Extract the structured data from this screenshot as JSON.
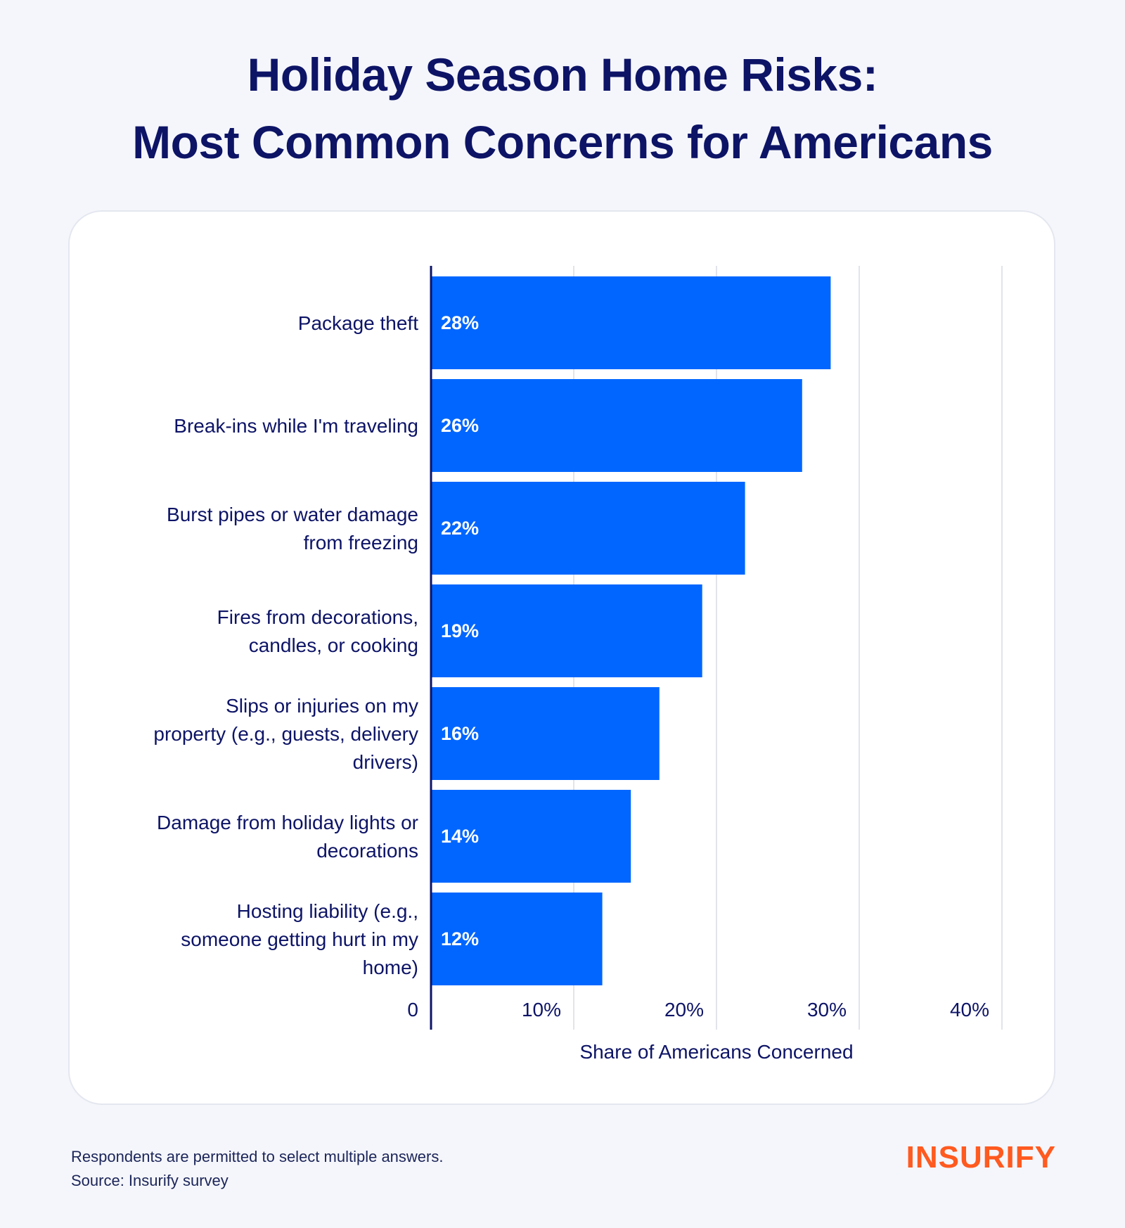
{
  "title": {
    "line1": "Holiday Season Home Risks:",
    "line2": "Most Common Concerns for Americans"
  },
  "chart_data": {
    "type": "bar",
    "orientation": "horizontal",
    "categories": [
      [
        "Package theft"
      ],
      [
        "Break-ins while I'm traveling"
      ],
      [
        "Burst pipes or water damage",
        "from freezing"
      ],
      [
        "Fires from decorations,",
        "candles, or cooking"
      ],
      [
        "Slips or injuries on my",
        "property (e.g., guests, delivery",
        "drivers)"
      ],
      [
        "Damage from holiday lights or",
        "decorations"
      ],
      [
        "Hosting liability (e.g.,",
        "someone getting hurt in my",
        "home)"
      ]
    ],
    "values": [
      28,
      26,
      22,
      19,
      16,
      14,
      12
    ],
    "data_labels": [
      "28%",
      "26%",
      "22%",
      "19%",
      "16%",
      "14%",
      "12%"
    ],
    "xlabel": "Share of Americans Concerned",
    "xlim": [
      0,
      40
    ],
    "ticks": [
      0,
      10,
      20,
      30,
      40
    ],
    "tick_labels": [
      "0",
      "10%",
      "20%",
      "30%",
      "40%"
    ],
    "grid": true,
    "colors": {
      "bar": "#0066ff",
      "axis": "#0d1466",
      "grid": "#e2e4ea",
      "text": "#0d1466",
      "label_text": "#ffffff"
    }
  },
  "footnote": {
    "line1": "Respondents are permitted to select multiple answers.",
    "line2": "Source: Insurify survey"
  },
  "logo": "INSURIFY"
}
